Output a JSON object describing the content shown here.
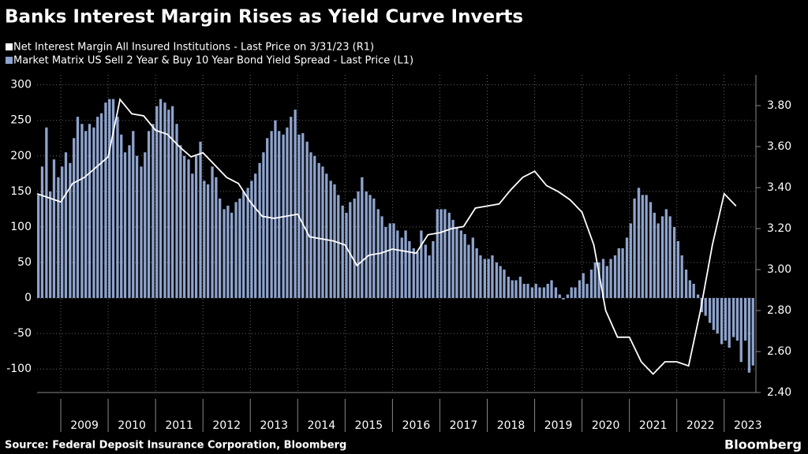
{
  "chart_data": {
    "type": "bar",
    "title": "Banks Interest Margin Rises as Yield Curve Inverts",
    "source": "Source: Federal Deposit Insurance Corporation, Bloomberg",
    "brand": "Bloomberg",
    "xlim": [
      2008.5,
      2023.67
    ],
    "xticks": [
      2009,
      2010,
      2011,
      2012,
      2013,
      2014,
      2015,
      2016,
      2017,
      2018,
      2019,
      2020,
      2021,
      2022,
      2023
    ],
    "ylim": [
      -133,
      314
    ],
    "yticks": [
      -100,
      -50,
      0,
      50,
      100,
      150,
      200,
      250,
      300
    ],
    "y2lim": [
      2.4,
      3.95
    ],
    "y2ticks": [
      {
        "value": 2.4,
        "label": "2.40"
      },
      {
        "value": 2.6,
        "label": "2.60"
      },
      {
        "value": 2.8,
        "label": "2.80"
      },
      {
        "value": 3.0,
        "label": "3.00"
      },
      {
        "value": 3.2,
        "label": "3.20"
      },
      {
        "value": 3.4,
        "label": "3.40"
      },
      {
        "value": 3.6,
        "label": "3.60"
      },
      {
        "value": 3.8,
        "label": "3.80"
      }
    ],
    "grid": true,
    "series": [
      {
        "name": "Net Interest Margin All Insured Institutions - Last Price on 3/31/23 (R1)",
        "type": "line",
        "axis": "y2",
        "color": "#ffffff",
        "x": [
          2008.5,
          2008.75,
          2009,
          2009.25,
          2009.5,
          2009.75,
          2010,
          2010.25,
          2010.5,
          2010.75,
          2011,
          2011.25,
          2011.5,
          2011.75,
          2012,
          2012.25,
          2012.5,
          2012.75,
          2013,
          2013.25,
          2013.5,
          2013.75,
          2014,
          2014.25,
          2014.5,
          2014.75,
          2015,
          2015.25,
          2015.5,
          2015.75,
          2016,
          2016.25,
          2016.5,
          2016.75,
          2017,
          2017.25,
          2017.5,
          2017.75,
          2018,
          2018.25,
          2018.5,
          2018.75,
          2019,
          2019.25,
          2019.5,
          2019.75,
          2020,
          2020.25,
          2020.5,
          2020.75,
          2021,
          2021.25,
          2021.5,
          2021.75,
          2022,
          2022.25,
          2022.5,
          2022.75,
          2023,
          2023.25
        ],
        "values": [
          3.37,
          3.35,
          3.33,
          3.42,
          3.45,
          3.5,
          3.55,
          3.83,
          3.76,
          3.75,
          3.68,
          3.66,
          3.6,
          3.55,
          3.57,
          3.51,
          3.45,
          3.42,
          3.33,
          3.26,
          3.25,
          3.26,
          3.27,
          3.16,
          3.15,
          3.14,
          3.12,
          3.02,
          3.07,
          3.08,
          3.1,
          3.09,
          3.08,
          3.17,
          3.18,
          3.2,
          3.21,
          3.3,
          3.31,
          3.32,
          3.39,
          3.45,
          3.48,
          3.41,
          3.38,
          3.34,
          3.28,
          3.12,
          2.8,
          2.67,
          2.67,
          2.55,
          2.49,
          2.55,
          2.55,
          2.53,
          2.8,
          3.12,
          3.37,
          3.31
        ]
      },
      {
        "name": "Market Matrix US Sell 2 Year & Buy 10 Year Bond Yield Spread - Last Price (L1)",
        "type": "bar",
        "axis": "y",
        "color": "#8ea3cd",
        "x": [
          2008.5,
          2008.58,
          2008.67,
          2008.75,
          2008.83,
          2008.92,
          2009,
          2009.08,
          2009.17,
          2009.25,
          2009.33,
          2009.42,
          2009.5,
          2009.58,
          2009.67,
          2009.75,
          2009.83,
          2009.92,
          2010,
          2010.08,
          2010.17,
          2010.25,
          2010.33,
          2010.42,
          2010.5,
          2010.58,
          2010.67,
          2010.75,
          2010.83,
          2010.92,
          2011,
          2011.08,
          2011.17,
          2011.25,
          2011.33,
          2011.42,
          2011.5,
          2011.58,
          2011.67,
          2011.75,
          2011.83,
          2011.92,
          2012,
          2012.08,
          2012.17,
          2012.25,
          2012.33,
          2012.42,
          2012.5,
          2012.58,
          2012.67,
          2012.75,
          2012.83,
          2012.92,
          2013,
          2013.08,
          2013.17,
          2013.25,
          2013.33,
          2013.42,
          2013.5,
          2013.58,
          2013.67,
          2013.75,
          2013.83,
          2013.92,
          2014,
          2014.08,
          2014.17,
          2014.25,
          2014.33,
          2014.42,
          2014.5,
          2014.58,
          2014.67,
          2014.75,
          2014.83,
          2014.92,
          2015,
          2015.08,
          2015.17,
          2015.25,
          2015.33,
          2015.42,
          2015.5,
          2015.58,
          2015.67,
          2015.75,
          2015.83,
          2015.92,
          2016,
          2016.08,
          2016.17,
          2016.25,
          2016.33,
          2016.42,
          2016.5,
          2016.58,
          2016.67,
          2016.75,
          2016.83,
          2016.92,
          2017,
          2017.08,
          2017.17,
          2017.25,
          2017.33,
          2017.42,
          2017.5,
          2017.58,
          2017.67,
          2017.75,
          2017.83,
          2017.92,
          2018,
          2018.08,
          2018.17,
          2018.25,
          2018.33,
          2018.42,
          2018.5,
          2018.58,
          2018.67,
          2018.75,
          2018.83,
          2018.92,
          2019,
          2019.08,
          2019.17,
          2019.25,
          2019.33,
          2019.42,
          2019.5,
          2019.58,
          2019.67,
          2019.75,
          2019.83,
          2019.92,
          2020,
          2020.08,
          2020.17,
          2020.25,
          2020.33,
          2020.42,
          2020.5,
          2020.58,
          2020.67,
          2020.75,
          2020.83,
          2020.92,
          2021,
          2021.08,
          2021.17,
          2021.25,
          2021.33,
          2021.42,
          2021.5,
          2021.58,
          2021.67,
          2021.75,
          2021.83,
          2021.92,
          2022,
          2022.08,
          2022.17,
          2022.25,
          2022.33,
          2022.42,
          2022.5,
          2022.58,
          2022.67,
          2022.75,
          2022.83,
          2022.92,
          2023,
          2023.08,
          2023.17,
          2023.25,
          2023.33,
          2023.42,
          2023.5,
          2023.58
        ],
        "values": [
          145,
          185,
          240,
          150,
          195,
          170,
          185,
          205,
          190,
          225,
          255,
          245,
          235,
          245,
          240,
          255,
          260,
          275,
          280,
          280,
          255,
          230,
          205,
          215,
          235,
          200,
          185,
          205,
          235,
          245,
          270,
          280,
          275,
          265,
          270,
          245,
          215,
          200,
          195,
          175,
          200,
          220,
          165,
          160,
          185,
          170,
          140,
          125,
          130,
          120,
          135,
          140,
          150,
          155,
          165,
          175,
          190,
          205,
          225,
          235,
          250,
          235,
          230,
          240,
          255,
          265,
          230,
          232,
          220,
          205,
          200,
          190,
          185,
          175,
          165,
          160,
          145,
          130,
          120,
          135,
          140,
          150,
          170,
          150,
          145,
          140,
          125,
          115,
          100,
          105,
          105,
          95,
          85,
          95,
          80,
          70,
          65,
          95,
          75,
          60,
          80,
          125,
          125,
          125,
          120,
          110,
          100,
          95,
          90,
          75,
          85,
          70,
          60,
          55,
          55,
          60,
          50,
          45,
          40,
          30,
          25,
          25,
          30,
          20,
          20,
          15,
          20,
          15,
          15,
          20,
          25,
          15,
          5,
          -2,
          5,
          15,
          15,
          25,
          35,
          20,
          40,
          50,
          50,
          55,
          45,
          55,
          60,
          70,
          70,
          85,
          105,
          140,
          155,
          145,
          145,
          135,
          120,
          105,
          115,
          125,
          115,
          100,
          80,
          60,
          40,
          25,
          20,
          5,
          -20,
          -25,
          -35,
          -45,
          -50,
          -65,
          -60,
          -70,
          -55,
          -60,
          -90,
          -60,
          -105,
          -95
        ]
      }
    ]
  }
}
